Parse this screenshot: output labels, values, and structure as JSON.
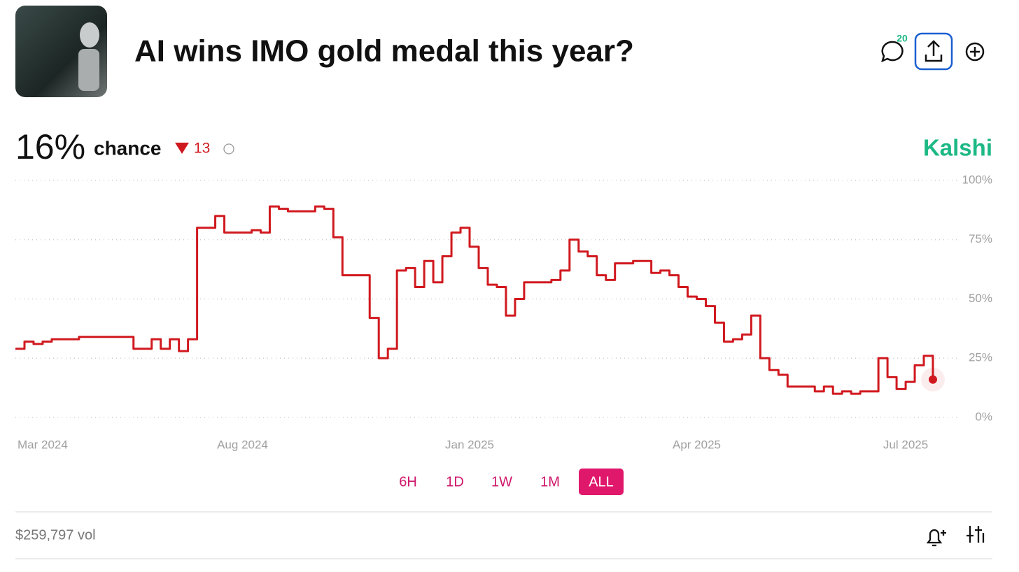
{
  "header": {
    "title": "AI wins IMO gold medal this year?",
    "comments_count": 20
  },
  "chance": {
    "value": "16%",
    "label": "chance",
    "change": 13
  },
  "brand": "Kalshi",
  "ranges": [
    "6H",
    "1D",
    "1W",
    "1M",
    "ALL"
  ],
  "selected_range": "ALL",
  "volume": "$259,797 vol",
  "chart_data": {
    "type": "line",
    "color": "#d0191f",
    "grid": true,
    "values": [
      29,
      32,
      31,
      32,
      33,
      33,
      33,
      34,
      34,
      34,
      34,
      34,
      34,
      29,
      29,
      33,
      29,
      33,
      28,
      33,
      80,
      80,
      85,
      78,
      78,
      78,
      79,
      78,
      89,
      88,
      87,
      87,
      87,
      89,
      88,
      76,
      60,
      60,
      60,
      42,
      25,
      29,
      62,
      63,
      55,
      66,
      57,
      68,
      78,
      80,
      72,
      63,
      56,
      55,
      43,
      50,
      57,
      57,
      57,
      58,
      62,
      75,
      70,
      68,
      60,
      58,
      65,
      65,
      66,
      66,
      61,
      62,
      60,
      55,
      51,
      50,
      47,
      40,
      32,
      33,
      35,
      43,
      25,
      20,
      18,
      13,
      13,
      13,
      11,
      13,
      10,
      11,
      10,
      11,
      11,
      25,
      17,
      12,
      15,
      22,
      26,
      16
    ],
    "xticks": [
      {
        "value": 3,
        "label": "Mar 2024"
      },
      {
        "value": 25,
        "label": "Aug 2024"
      },
      {
        "value": 50,
        "label": "Jan 2025"
      },
      {
        "value": 75,
        "label": "Apr 2025"
      },
      {
        "value": 98,
        "label": "Jul 2025"
      }
    ],
    "ylim": [
      0,
      100
    ],
    "yticks": [
      {
        "value": 0,
        "label": "0%"
      },
      {
        "value": 25,
        "label": "25%"
      },
      {
        "value": 50,
        "label": "50%"
      },
      {
        "value": 75,
        "label": "75%"
      },
      {
        "value": 100,
        "label": "100%"
      }
    ]
  }
}
